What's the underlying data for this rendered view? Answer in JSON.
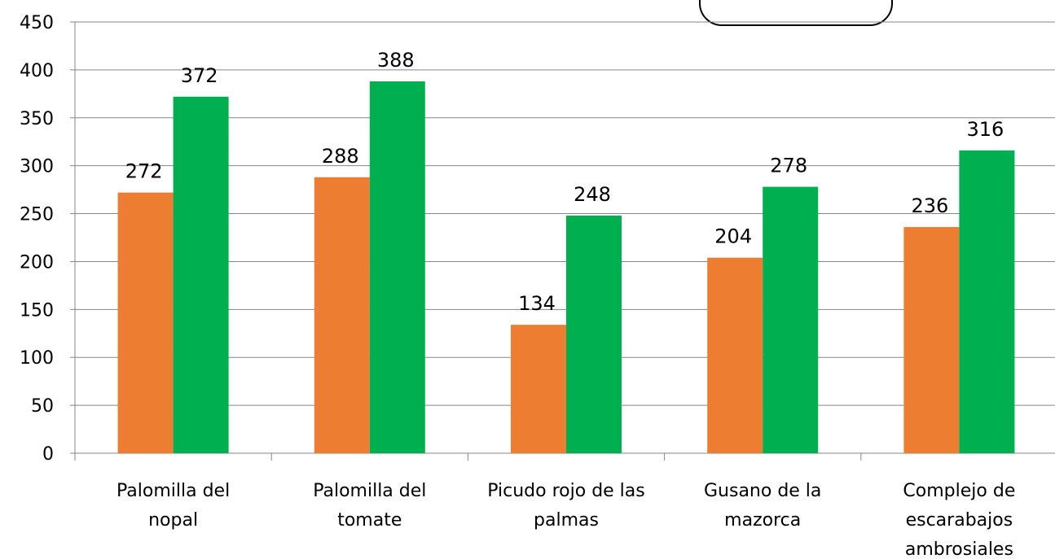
{
  "chart_data": {
    "type": "bar",
    "categories": [
      [
        "Palomilla del",
        "nopal"
      ],
      [
        "Palomilla del",
        "tomate"
      ],
      [
        "Picudo rojo de las",
        "palmas"
      ],
      [
        "Gusano de la",
        "mazorca"
      ],
      [
        "Complejo de",
        "escarabajos",
        "ambrosiales"
      ]
    ],
    "series": [
      {
        "values": [
          272,
          288,
          134,
          204,
          236
        ],
        "color": "#ED7D31"
      },
      {
        "values": [
          372,
          388,
          248,
          278,
          316
        ],
        "color": "#00B050"
      }
    ],
    "yticks": [
      0,
      50,
      100,
      150,
      200,
      250,
      300,
      350,
      400,
      450
    ],
    "ylim": [
      0,
      450
    ],
    "grid": true,
    "legend": "top-right"
  }
}
